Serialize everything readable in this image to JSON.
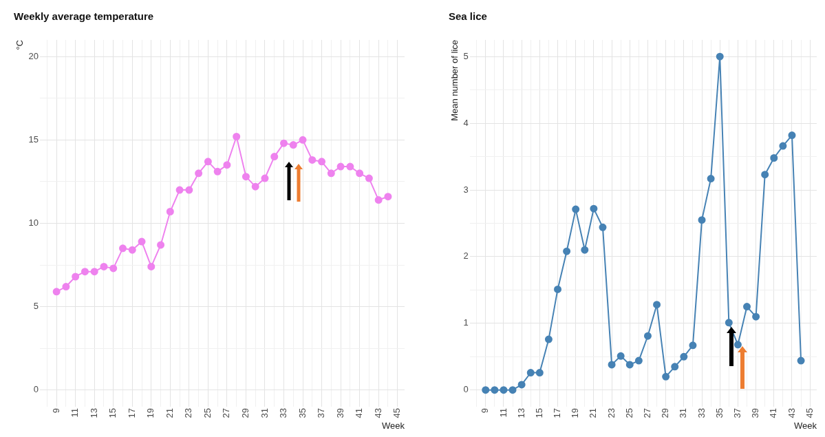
{
  "chart_data": [
    {
      "type": "line",
      "title": "Weekly average temperature",
      "xlabel": "Week",
      "ylabel": "°C",
      "marker": "circle",
      "grid": true,
      "legend": false,
      "x": [
        9,
        10,
        11,
        12,
        13,
        14,
        15,
        16,
        17,
        18,
        19,
        20,
        21,
        22,
        23,
        24,
        25,
        26,
        27,
        28,
        29,
        30,
        31,
        32,
        33,
        34,
        35,
        36,
        37,
        38,
        39,
        40,
        41,
        42,
        43,
        44
      ],
      "series": [
        {
          "color": "#ee82ee",
          "values": [
            5.9,
            6.2,
            6.8,
            7.1,
            7.1,
            7.4,
            7.3,
            8.5,
            8.4,
            8.9,
            7.4,
            8.7,
            10.7,
            12.0,
            12.0,
            13.0,
            13.7,
            13.1,
            13.5,
            15.2,
            12.8,
            12.2,
            12.7,
            14.0,
            14.8,
            14.7,
            15.0,
            13.8,
            13.7,
            13.0,
            13.4,
            13.4,
            13.0,
            12.7,
            11.4,
            11.6
          ]
        }
      ],
      "xlim": [
        7.25,
        45.75
      ],
      "ylim": [
        -1,
        21
      ],
      "xticks": [
        {
          "value": 8,
          "label": null
        },
        9,
        {
          "value": 10,
          "label": null
        },
        11,
        {
          "value": 12,
          "label": null
        },
        13,
        {
          "value": 14,
          "label": null
        },
        15,
        {
          "value": 16,
          "label": null
        },
        17,
        {
          "value": 18,
          "label": null
        },
        19,
        {
          "value": 20,
          "label": null
        },
        21,
        {
          "value": 22,
          "label": null
        },
        23,
        {
          "value": 24,
          "label": null
        },
        25,
        {
          "value": 26,
          "label": null
        },
        27,
        {
          "value": 28,
          "label": null
        },
        29,
        {
          "value": 30,
          "label": null
        },
        31,
        {
          "value": 32,
          "label": null
        },
        33,
        {
          "value": 34,
          "label": null
        },
        35,
        {
          "value": 36,
          "label": null
        },
        37,
        {
          "value": 38,
          "label": null
        },
        39,
        {
          "value": 40,
          "label": null
        },
        41,
        {
          "value": 42,
          "label": null
        },
        43,
        {
          "value": 44,
          "label": null
        },
        45
      ],
      "yticks": [
        0,
        {
          "value": 2.5,
          "label": null
        },
        5,
        {
          "value": 7.5,
          "label": null
        },
        10,
        {
          "value": 12.5,
          "label": null
        },
        15,
        {
          "value": 17.5,
          "label": null
        },
        20
      ]
    },
    {
      "type": "line",
      "title": "Sea lice",
      "xlabel": "Week",
      "ylabel": "Mean number of lice",
      "marker": "circle",
      "grid": true,
      "legend": false,
      "x": [
        9,
        10,
        11,
        12,
        13,
        14,
        15,
        16,
        17,
        18,
        19,
        20,
        21,
        22,
        23,
        24,
        25,
        26,
        27,
        28,
        29,
        30,
        31,
        32,
        33,
        34,
        35,
        36,
        37,
        38,
        39,
        40,
        41,
        42,
        43,
        44
      ],
      "series": [
        {
          "color": "#4682b4",
          "values": [
            0,
            0,
            0,
            0,
            0.08,
            0.26,
            0.26,
            0.76,
            1.51,
            2.08,
            2.71,
            2.1,
            2.72,
            2.44,
            0.38,
            0.51,
            0.38,
            0.44,
            0.81,
            1.28,
            0.2,
            0.35,
            0.5,
            0.67,
            2.55,
            3.17,
            5.0,
            1.01,
            0.68,
            1.25,
            1.1,
            3.23,
            3.48,
            3.66,
            3.82,
            0.44
          ]
        }
      ],
      "xlim": [
        7.25,
        45.75
      ],
      "ylim": [
        -0.25,
        5.25
      ],
      "xticks": [
        {
          "value": 8,
          "label": null
        },
        9,
        {
          "value": 10,
          "label": null
        },
        11,
        {
          "value": 12,
          "label": null
        },
        13,
        {
          "value": 14,
          "label": null
        },
        15,
        {
          "value": 16,
          "label": null
        },
        17,
        {
          "value": 18,
          "label": null
        },
        19,
        {
          "value": 20,
          "label": null
        },
        21,
        {
          "value": 22,
          "label": null
        },
        23,
        {
          "value": 24,
          "label": null
        },
        25,
        {
          "value": 26,
          "label": null
        },
        27,
        {
          "value": 28,
          "label": null
        },
        29,
        {
          "value": 30,
          "label": null
        },
        31,
        {
          "value": 32,
          "label": null
        },
        33,
        {
          "value": 34,
          "label": null
        },
        35,
        {
          "value": 36,
          "label": null
        },
        37,
        {
          "value": 38,
          "label": null
        },
        39,
        {
          "value": 40,
          "label": null
        },
        41,
        {
          "value": 42,
          "label": null
        },
        43,
        {
          "value": 44,
          "label": null
        },
        45
      ],
      "yticks": [
        0,
        {
          "value": 0.5,
          "label": null
        },
        1,
        {
          "value": 1.5,
          "label": null
        },
        2,
        {
          "value": 2.5,
          "label": null
        },
        3,
        {
          "value": 3.5,
          "label": null
        },
        4,
        {
          "value": 4.5,
          "label": null
        },
        5
      ]
    }
  ]
}
